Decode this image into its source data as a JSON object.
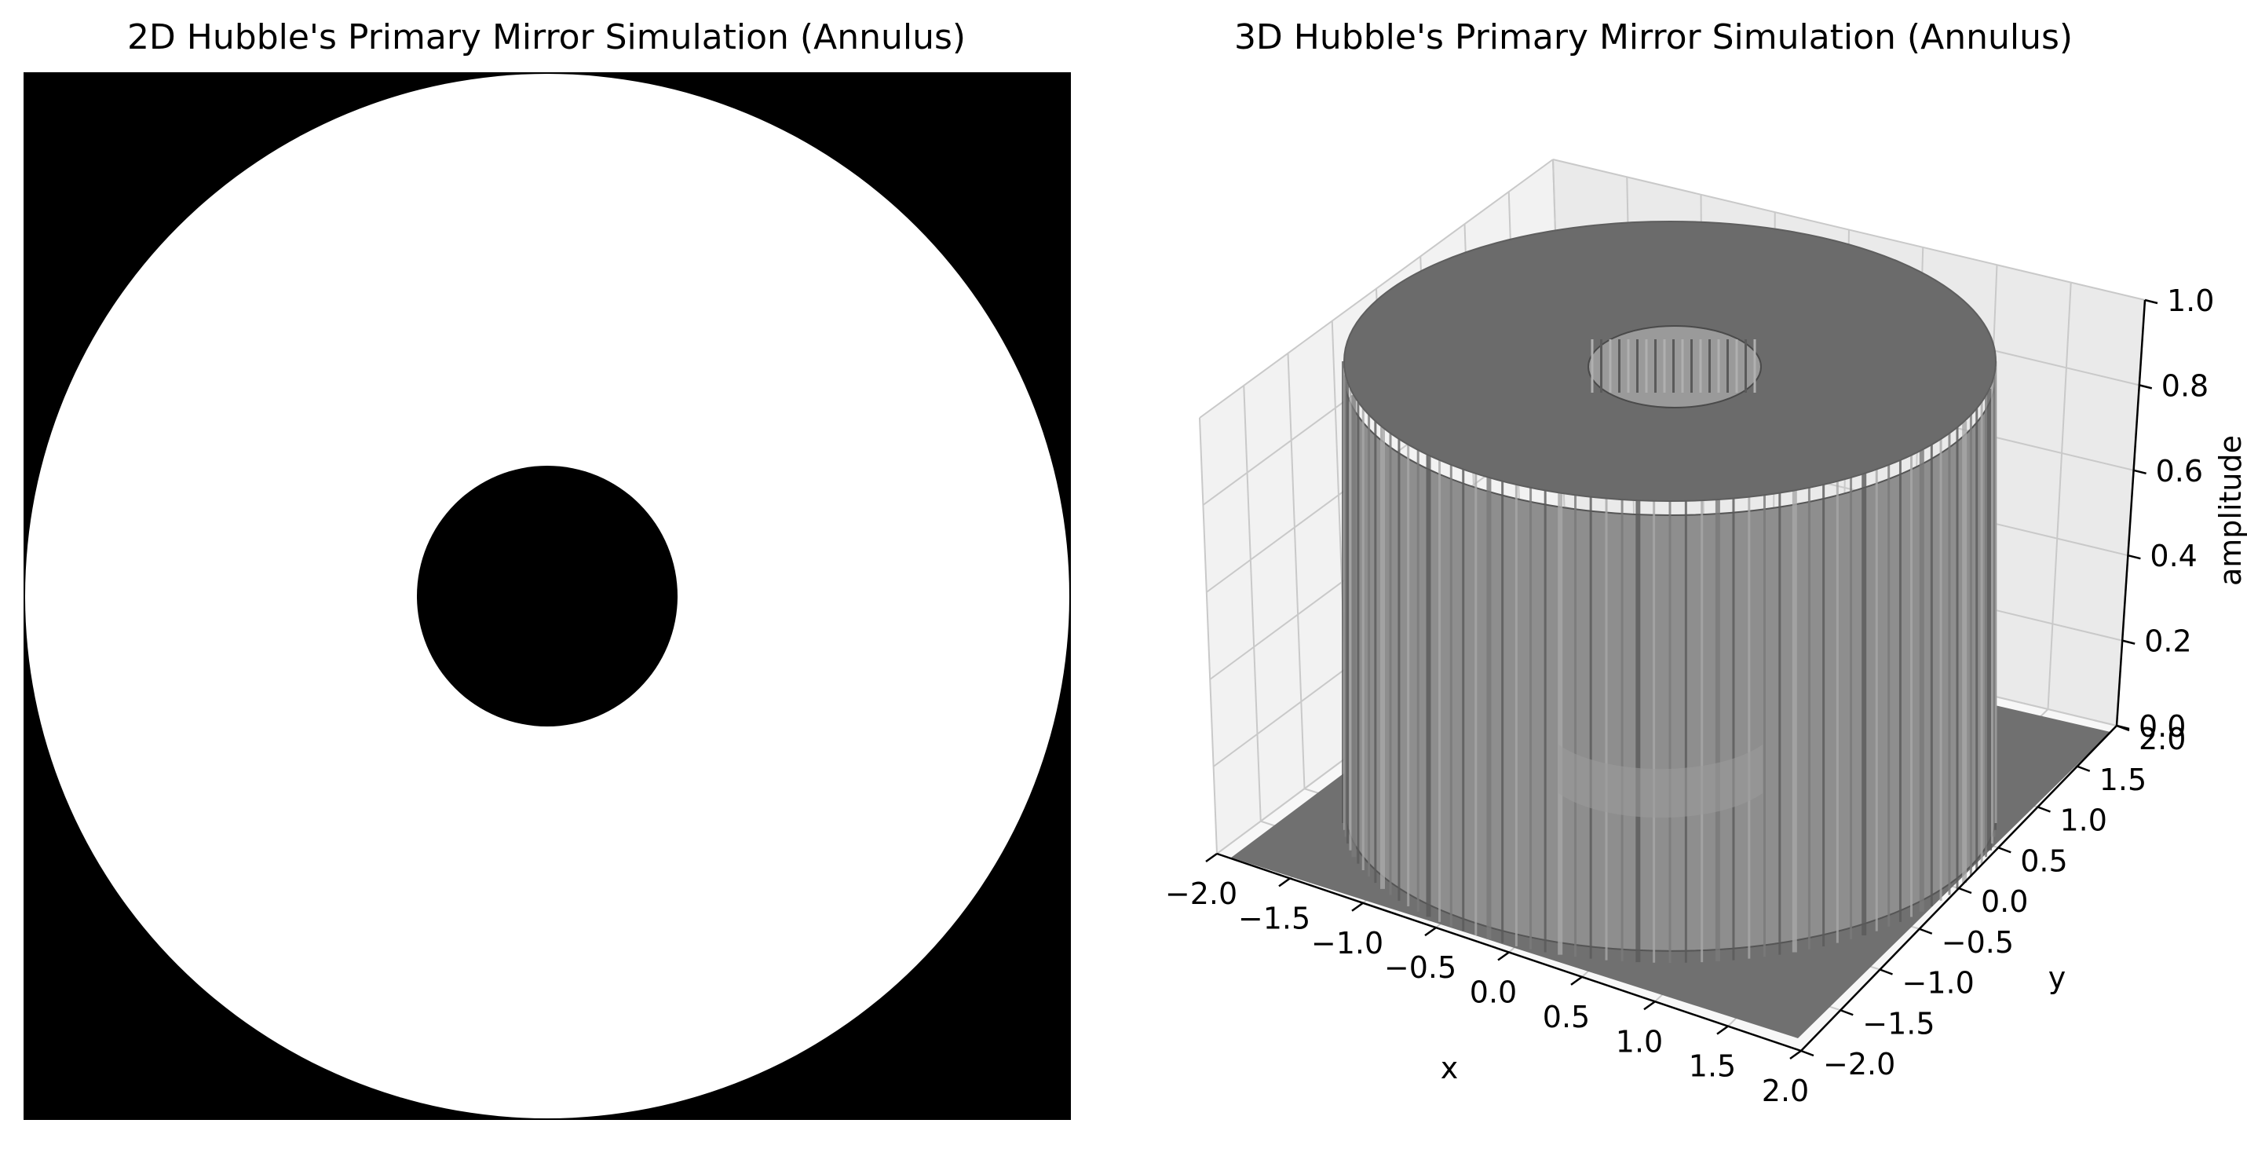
{
  "chart_data": [
    {
      "type": "heatmap",
      "title": "2D Hubble's Primary Mirror Simulation (Annulus)",
      "colormap": "gray",
      "x_range": [
        -2.0,
        2.0
      ],
      "y_range": [
        -2.0,
        2.0
      ],
      "outer_radius": 2.0,
      "inner_radius": 0.5,
      "inside_value": 1,
      "outside_value": 0,
      "axes_visible": false
    },
    {
      "type": "surface3d",
      "title": "3D Hubble's Primary Mirror Simulation (Annulus)",
      "xlabel": "x",
      "ylabel": "y",
      "zlabel": "amplitude",
      "xlim": [
        -2.0,
        2.0
      ],
      "ylim": [
        -2.0,
        2.0
      ],
      "zlim": [
        0.0,
        1.0
      ],
      "xticks": [
        "−2.0",
        "−1.5",
        "−1.0",
        "−0.5",
        "0.0",
        "0.5",
        "1.0",
        "1.5",
        "2.0"
      ],
      "yticks": [
        "−2.0",
        "−1.5",
        "−1.0",
        "−0.5",
        "0.0",
        "0.5",
        "1.0",
        "1.5",
        "2.0"
      ],
      "zticks": [
        "0.0",
        "0.2",
        "0.4",
        "0.6",
        "0.8",
        "1.0"
      ],
      "xtick_values": [
        -2.0,
        -1.5,
        -1.0,
        -0.5,
        0.0,
        0.5,
        1.0,
        1.5,
        2.0
      ],
      "ytick_values": [
        -2.0,
        -1.5,
        -1.0,
        -0.5,
        0.0,
        0.5,
        1.0,
        1.5,
        2.0
      ],
      "ztick_values": [
        0.0,
        0.2,
        0.4,
        0.6,
        0.8,
        1.0
      ],
      "outer_radius": 2.0,
      "inner_radius": 0.5,
      "surface_height": 1.0,
      "surface_color": "#6b6b6b",
      "grid": true
    }
  ]
}
